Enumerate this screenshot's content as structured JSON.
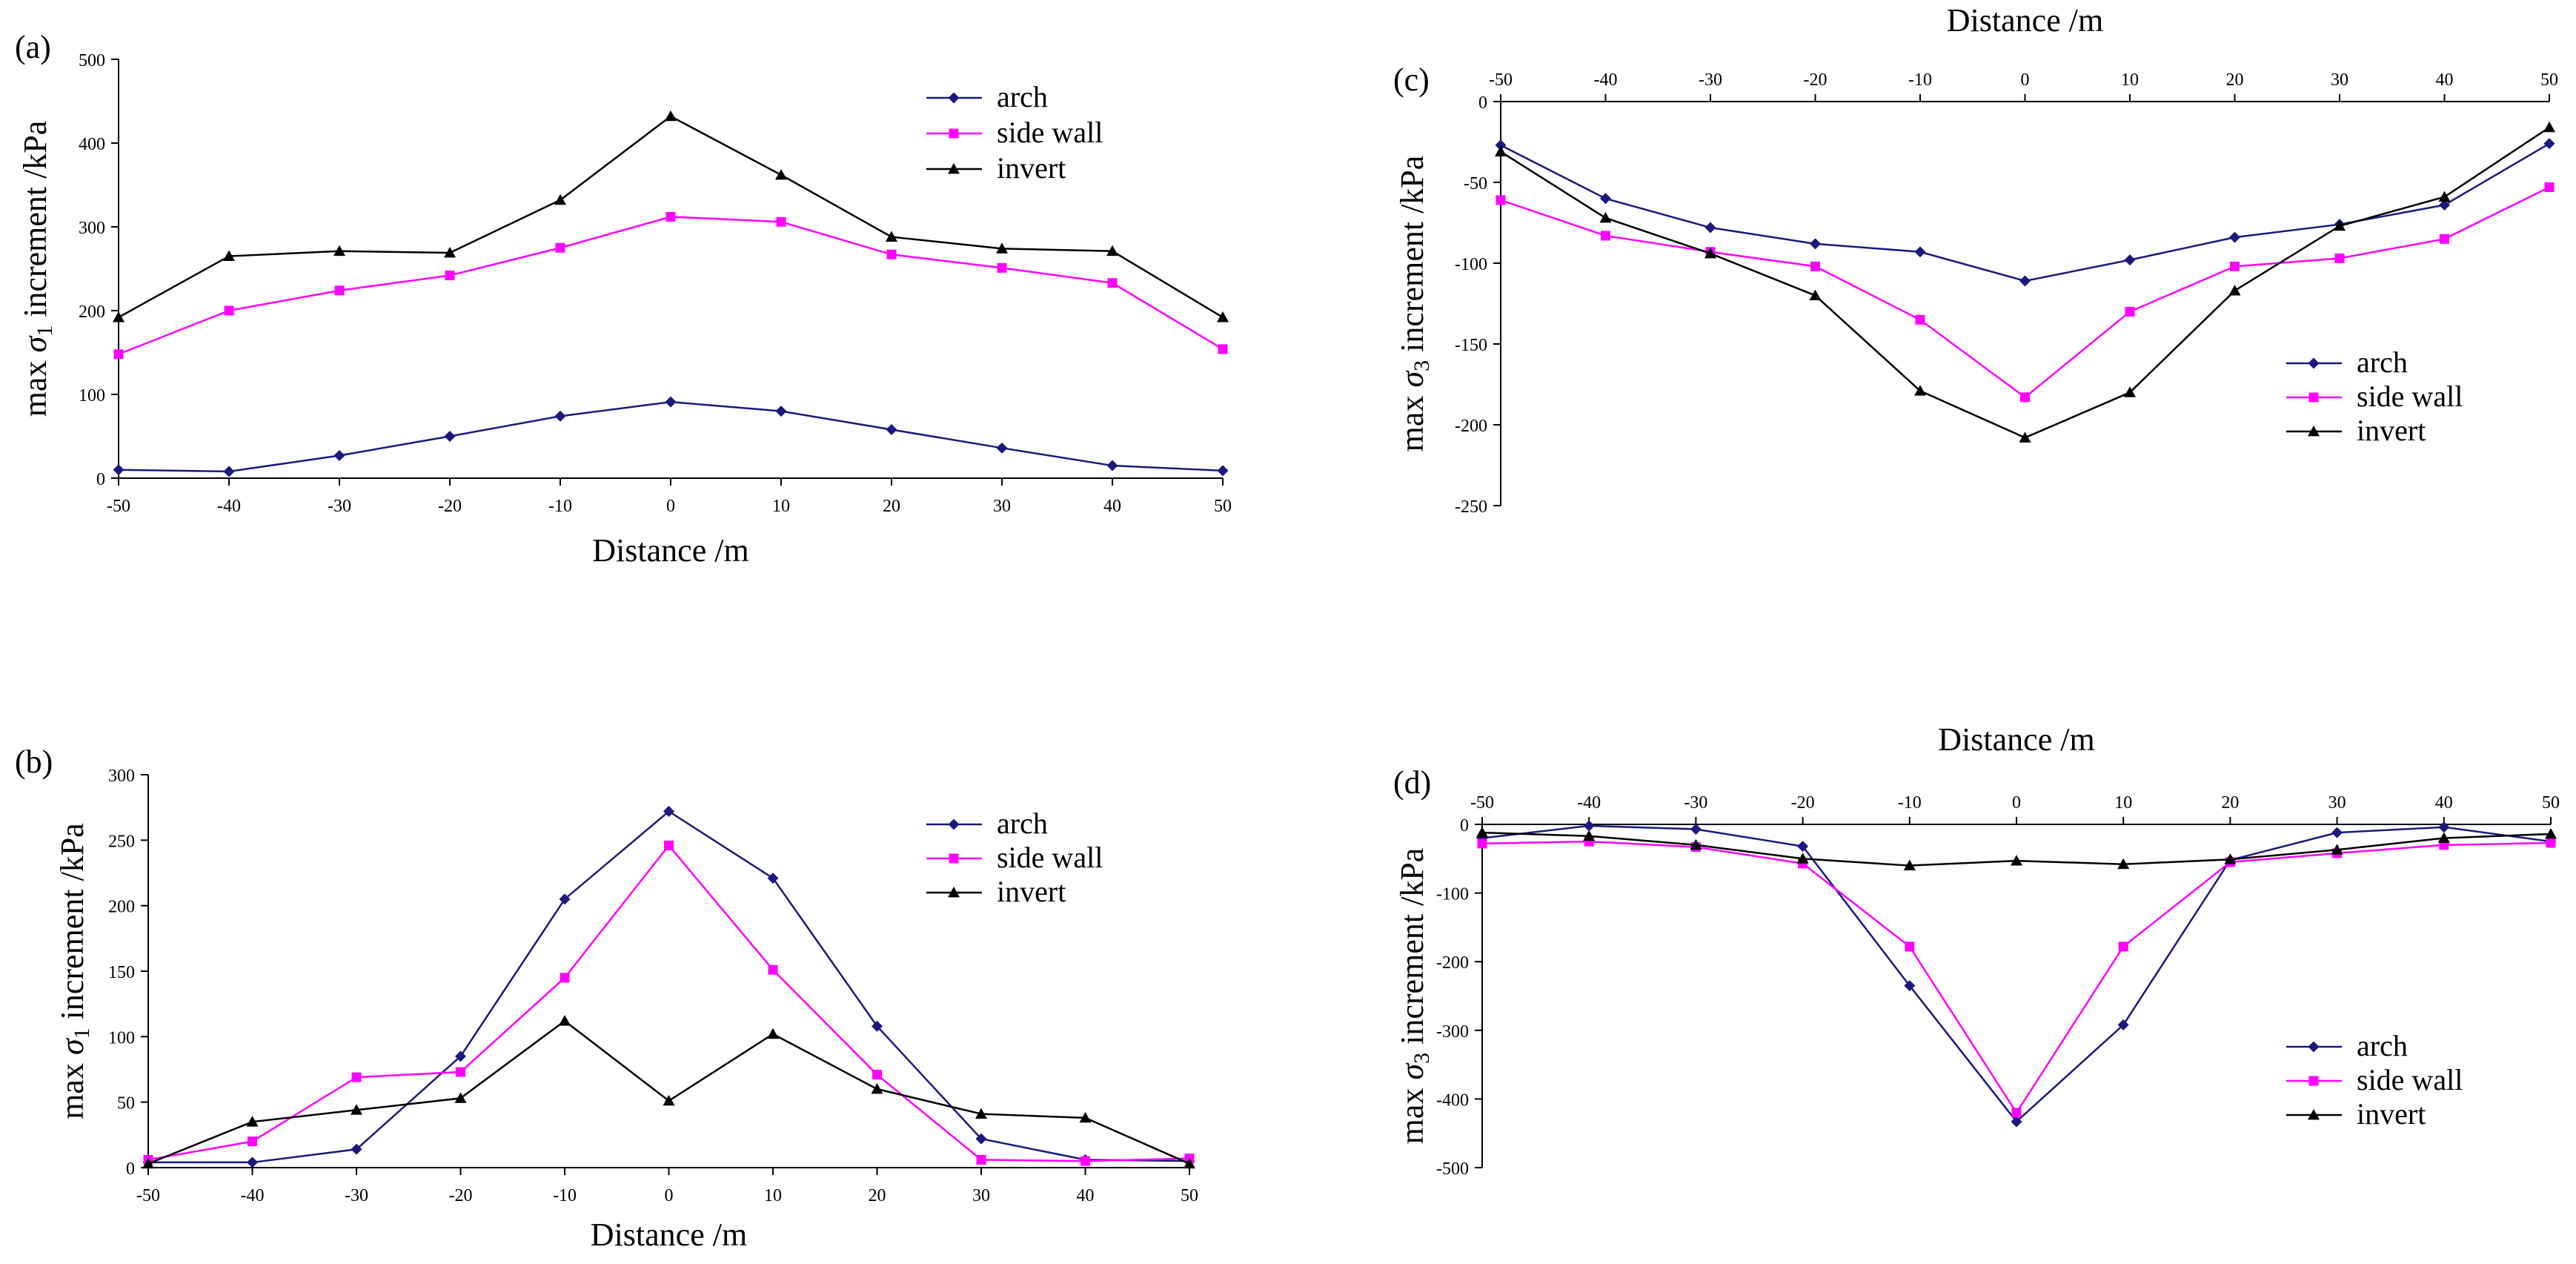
{
  "chart_data": [
    {
      "panel": "(a)",
      "type": "line",
      "title": "",
      "xlabel": "Distance /m",
      "ylabel": "max σ1 increment /kPa",
      "ylabel_parts": {
        "pre": "max ",
        "sym": "σ",
        "sub": "1",
        "post": " increment /kPa"
      },
      "x": [
        -50,
        -40,
        -30,
        -20,
        -10,
        0,
        10,
        20,
        30,
        40,
        50
      ],
      "xlim": [
        -50,
        50
      ],
      "ylim": [
        0,
        500
      ],
      "xticks": [
        "-50",
        "-40",
        "-30",
        "-20",
        "-10",
        "0",
        "10",
        "20",
        "30",
        "40",
        "50"
      ],
      "yticks": [
        "0",
        "100",
        "200",
        "300",
        "400",
        "500"
      ],
      "ytick_values": [
        0,
        100,
        200,
        300,
        400,
        500
      ],
      "x_axis_position": "bottom",
      "series": [
        {
          "name": "arch",
          "color": "#1a1a7e",
          "marker": "diamond",
          "values": [
            10,
            8,
            27,
            50,
            74,
            91,
            80,
            58,
            36,
            15,
            9
          ]
        },
        {
          "name": "side wall",
          "color": "#ff00ff",
          "marker": "square",
          "values": [
            148,
            200,
            224,
            242,
            275,
            312,
            306,
            267,
            251,
            233,
            154
          ]
        },
        {
          "name": "invert",
          "color": "#000000",
          "marker": "triangle",
          "values": [
            192,
            265,
            271,
            269,
            332,
            432,
            362,
            288,
            274,
            271,
            192
          ]
        }
      ]
    },
    {
      "panel": "(b)",
      "type": "line",
      "title": "",
      "xlabel": "Distance /m",
      "ylabel": "max σ1 increment /kPa",
      "ylabel_parts": {
        "pre": "max ",
        "sym": "σ",
        "sub": "1",
        "post": " increment /kPa"
      },
      "x": [
        -50,
        -40,
        -30,
        -20,
        -10,
        0,
        10,
        20,
        30,
        40,
        50
      ],
      "xlim": [
        -50,
        50
      ],
      "ylim": [
        0,
        300
      ],
      "xticks": [
        "-50",
        "-40",
        "-30",
        "-20",
        "-10",
        "0",
        "10",
        "20",
        "30",
        "40",
        "50"
      ],
      "yticks": [
        "0",
        "50",
        "100",
        "150",
        "200",
        "250",
        "300"
      ],
      "ytick_values": [
        0,
        50,
        100,
        150,
        200,
        250,
        300
      ],
      "x_axis_position": "bottom",
      "series": [
        {
          "name": "arch",
          "color": "#1a1a7e",
          "marker": "diamond",
          "values": [
            4,
            4,
            14,
            85,
            205,
            272,
            221,
            108,
            22,
            6,
            5
          ]
        },
        {
          "name": "side wall",
          "color": "#ff00ff",
          "marker": "square",
          "values": [
            6,
            20,
            69,
            73,
            145,
            246,
            151,
            71,
            6,
            5,
            7
          ]
        },
        {
          "name": "invert",
          "color": "#000000",
          "marker": "triangle",
          "values": [
            3,
            35,
            44,
            53,
            112,
            51,
            102,
            60,
            41,
            38,
            3
          ]
        }
      ]
    },
    {
      "panel": "(c)",
      "type": "line",
      "title": "",
      "xlabel": "Distance /m",
      "ylabel": "max σ3 increment /kPa",
      "ylabel_parts": {
        "pre": "max ",
        "sym": "σ",
        "sub": "3",
        "post": " increment /kPa"
      },
      "x": [
        -50,
        -40,
        -30,
        -20,
        -10,
        0,
        10,
        20,
        30,
        40,
        50
      ],
      "xlim": [
        -50,
        50
      ],
      "ylim": [
        -250,
        0
      ],
      "xticks": [
        "-50",
        "-40",
        "-30",
        "-20",
        "-10",
        "0",
        "10",
        "20",
        "30",
        "40",
        "50"
      ],
      "yticks": [
        "-250",
        "-200",
        "-150",
        "-100",
        "-50",
        "0"
      ],
      "ytick_values": [
        -250,
        -200,
        -150,
        -100,
        -50,
        0
      ],
      "x_axis_position": "top",
      "series": [
        {
          "name": "arch",
          "color": "#1a1a7e",
          "marker": "diamond",
          "values": [
            -27,
            -60,
            -78,
            -88,
            -93,
            -111,
            -98,
            -84,
            -76,
            -64,
            -26
          ]
        },
        {
          "name": "side wall",
          "color": "#ff00ff",
          "marker": "square",
          "values": [
            -61,
            -83,
            -93,
            -102,
            -135,
            -183,
            -130,
            -102,
            -97,
            -85,
            -53
          ]
        },
        {
          "name": "invert",
          "color": "#000000",
          "marker": "triangle",
          "values": [
            -31,
            -72,
            -94,
            -120,
            -179,
            -208,
            -180,
            -117,
            -77,
            -59,
            -16
          ]
        }
      ]
    },
    {
      "panel": "(d)",
      "type": "line",
      "title": "",
      "xlabel": "Distance /m",
      "ylabel": "max σ3 increment /kPa",
      "ylabel_parts": {
        "pre": "max ",
        "sym": "σ",
        "sub": "3",
        "post": " increment /kPa"
      },
      "x": [
        -50,
        -40,
        -30,
        -20,
        -10,
        0,
        10,
        20,
        30,
        40,
        50
      ],
      "xlim": [
        -50,
        50
      ],
      "ylim": [
        -500,
        0
      ],
      "xticks": [
        "-50",
        "-40",
        "-30",
        "-20",
        "-10",
        "0",
        "10",
        "20",
        "30",
        "40",
        "50"
      ],
      "yticks": [
        "-500",
        "-400",
        "-300",
        "-200",
        "-100",
        "0"
      ],
      "ytick_values": [
        -500,
        -400,
        -300,
        -200,
        -100,
        0
      ],
      "x_axis_position": "top",
      "series": [
        {
          "name": "arch",
          "color": "#1a1a7e",
          "marker": "diamond",
          "values": [
            -20,
            -2,
            -7,
            -32,
            -235,
            -433,
            -292,
            -52,
            -12,
            -4,
            -25
          ]
        },
        {
          "name": "side wall",
          "color": "#ff00ff",
          "marker": "square",
          "values": [
            -28,
            -25,
            -33,
            -57,
            -178,
            -420,
            -178,
            -55,
            -42,
            -30,
            -27
          ]
        },
        {
          "name": "invert",
          "color": "#000000",
          "marker": "triangle",
          "values": [
            -12,
            -17,
            -30,
            -50,
            -60,
            -53,
            -58,
            -51,
            -37,
            -20,
            -14
          ]
        }
      ]
    }
  ]
}
